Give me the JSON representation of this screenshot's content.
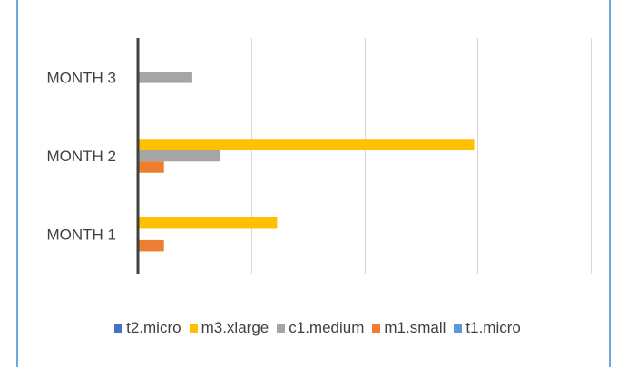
{
  "chart_data": {
    "type": "bar",
    "orientation": "horizontal",
    "categories": [
      "MONTH 1",
      "MONTH 2",
      "MONTH 3"
    ],
    "series": [
      {
        "name": "t2.micro",
        "color": "#4472c4",
        "values": [
          0,
          0,
          0
        ]
      },
      {
        "name": "m3.xlarge",
        "color": "#ffc000",
        "values": [
          1.23,
          2.97,
          0
        ]
      },
      {
        "name": "c1.medium",
        "color": "#a5a5a5",
        "values": [
          0,
          0.73,
          0.48
        ]
      },
      {
        "name": "m1.small",
        "color": "#ed7d31",
        "values": [
          0.23,
          0.23,
          0
        ]
      },
      {
        "name": "t1.micro",
        "color": "#5b9bd5",
        "values": [
          0,
          0,
          0
        ]
      }
    ],
    "xlim": [
      0,
      4
    ],
    "grid": true,
    "legend_position": "bottom"
  }
}
